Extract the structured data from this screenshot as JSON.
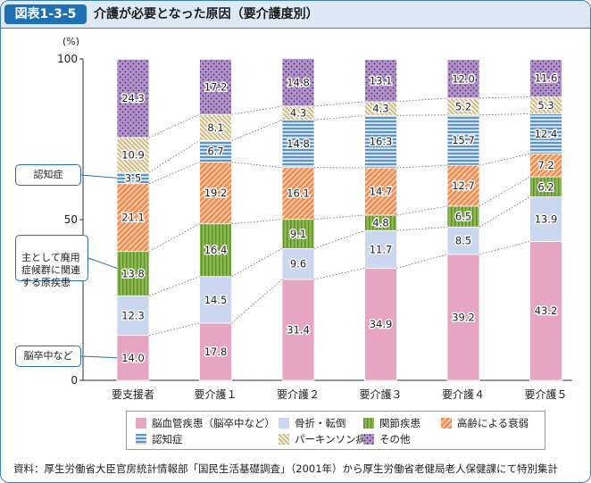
{
  "header": {
    "figure_label": "図表1-3-5",
    "title": "介護が必要となった原因（要介護度別）"
  },
  "source_note": "資料：厚生労働省大臣官房統計情報部「国民生活基礎調査」（2001年）から厚生労働省老健局老人保健課にて特別集計",
  "callouts": {
    "dementia": "認知症",
    "main_causes": "主として廃用\n症候群に関連\nする原疾患",
    "stroke": "脳卒中など"
  },
  "legend": [
    {
      "key": "cerebro",
      "label": "脳血管疾患（脳卒中など）"
    },
    {
      "key": "fracture",
      "label": "骨折・転倒"
    },
    {
      "key": "joint",
      "label": "関節疾患"
    },
    {
      "key": "aging",
      "label": "高齢による衰弱"
    },
    {
      "key": "dementia",
      "label": "認知症"
    },
    {
      "key": "parkinson",
      "label": "パーキンソン病"
    },
    {
      "key": "other",
      "label": "その他"
    }
  ],
  "colors": {
    "cerebro": "#e6a5c3",
    "fracture": "#cbd7ef",
    "joint": "#8cba52",
    "aging": "#ef8e55",
    "dementia": "#5e93c6",
    "parkinson": "#d8cc9e",
    "other": "#b191c9",
    "axis": "#333333",
    "connector": "#666666"
  },
  "chart_data": {
    "type": "bar",
    "stacked": true,
    "unit_label": "(%)",
    "ylim": [
      0,
      100
    ],
    "yticks": [
      0,
      50,
      100
    ],
    "categories": [
      "要支援者",
      "要介護１",
      "要介護２",
      "要介護３",
      "要介護４",
      "要介護５"
    ],
    "series": [
      {
        "key": "cerebro",
        "name": "脳血管疾患（脳卒中など）",
        "values": [
          14.0,
          17.8,
          31.4,
          34.9,
          39.2,
          43.2
        ]
      },
      {
        "key": "fracture",
        "name": "骨折・転倒",
        "values": [
          12.3,
          14.5,
          9.6,
          11.7,
          8.5,
          13.9
        ]
      },
      {
        "key": "joint",
        "name": "関節疾患",
        "values": [
          13.8,
          16.4,
          9.1,
          4.8,
          6.5,
          6.2
        ]
      },
      {
        "key": "aging",
        "name": "高齢による衰弱",
        "values": [
          21.1,
          19.2,
          16.1,
          14.7,
          12.7,
          7.2
        ]
      },
      {
        "key": "dementia",
        "name": "認知症",
        "values": [
          3.5,
          6.7,
          14.8,
          16.3,
          15.7,
          12.4
        ]
      },
      {
        "key": "parkinson",
        "name": "パーキンソン病",
        "values": [
          10.9,
          8.1,
          4.3,
          4.3,
          5.2,
          5.3
        ]
      },
      {
        "key": "other",
        "name": "その他",
        "values": [
          24.3,
          17.2,
          14.8,
          13.1,
          12.0,
          11.6
        ]
      }
    ]
  }
}
